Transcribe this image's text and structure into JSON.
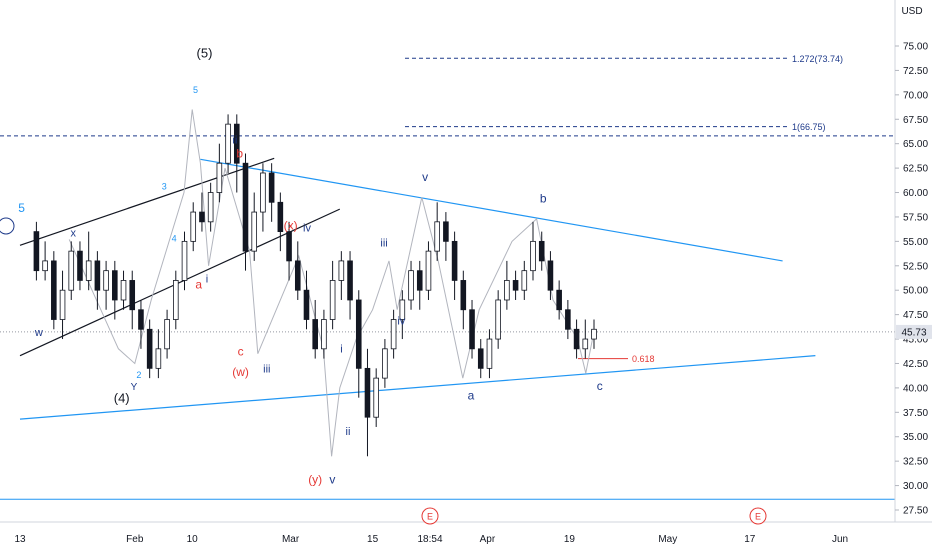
{
  "chart_data": {
    "type": "candlestick",
    "currency_label": "USD",
    "ylim": [
      26,
      76
    ],
    "y_ticks": [
      27.5,
      30.0,
      32.5,
      35.0,
      37.5,
      40.0,
      42.5,
      45.0,
      47.5,
      50.0,
      52.5,
      55.0,
      57.5,
      60.0,
      62.5,
      65.0,
      67.5,
      70.0,
      72.5,
      75.0
    ],
    "y_tick_labels": [
      "27.50",
      "30.00",
      "32.50",
      "35.00",
      "37.50",
      "40.00",
      "42.50",
      "45.00",
      "47.50",
      "50.00",
      "52.50",
      "55.00",
      "57.50",
      "60.00",
      "62.50",
      "65.00",
      "67.50",
      "70.00",
      "72.50",
      "75.00"
    ],
    "x_ticks": [
      {
        "t": 0,
        "label": "13"
      },
      {
        "t": 14,
        "label": "Feb"
      },
      {
        "t": 21,
        "label": "10"
      },
      {
        "t": 33,
        "label": "Mar"
      },
      {
        "t": 43,
        "label": "15"
      },
      {
        "t": 50,
        "label": "18:54"
      },
      {
        "t": 57,
        "label": "Apr"
      },
      {
        "t": 67,
        "label": "19"
      },
      {
        "t": 79,
        "label": "May"
      },
      {
        "t": 89,
        "label": "17"
      },
      {
        "t": 100,
        "label": "Jun"
      }
    ],
    "current_price": 45.73,
    "current_price_label": "45.73",
    "fib_levels": [
      {
        "value": 73.74,
        "label": "1.272(73.74)"
      },
      {
        "value": 66.75,
        "label": "1(66.75)"
      }
    ],
    "dashed_level": {
      "value": 65.8
    },
    "bottom_line": {
      "value": 28.6
    },
    "fib_retracement": {
      "value": 43.0,
      "label": "0.618"
    },
    "event_markers": [
      {
        "t": 50,
        "label": "E"
      },
      {
        "t": 90,
        "label": "E"
      }
    ],
    "candles": [
      [
        56,
        52,
        57,
        51
      ],
      [
        52,
        53,
        55,
        51
      ],
      [
        53,
        47,
        54,
        46
      ],
      [
        47,
        50,
        52,
        45
      ],
      [
        50,
        54,
        55,
        49
      ],
      [
        54,
        51,
        55,
        50
      ],
      [
        51,
        53,
        56,
        50
      ],
      [
        53,
        50,
        54,
        48
      ],
      [
        50,
        52,
        53,
        48
      ],
      [
        52,
        49,
        53,
        47
      ],
      [
        49,
        51,
        52,
        48
      ],
      [
        51,
        48,
        52,
        46
      ],
      [
        48,
        46,
        49,
        44
      ],
      [
        46,
        42,
        47,
        41
      ],
      [
        42,
        44,
        46,
        41
      ],
      [
        44,
        47,
        48,
        43
      ],
      [
        47,
        51,
        52,
        46
      ],
      [
        51,
        55,
        56,
        50
      ],
      [
        55,
        58,
        59,
        54
      ],
      [
        58,
        57,
        60,
        56
      ],
      [
        57,
        60,
        61,
        56
      ],
      [
        60,
        63,
        65,
        59
      ],
      [
        63,
        67,
        68,
        62
      ],
      [
        67,
        63,
        68,
        60
      ],
      [
        63,
        54,
        64,
        52
      ],
      [
        54,
        58,
        60,
        53
      ],
      [
        58,
        62,
        63,
        56
      ],
      [
        62,
        59,
        63,
        57
      ],
      [
        59,
        56,
        60,
        54
      ],
      [
        56,
        53,
        57,
        51
      ],
      [
        53,
        50,
        55,
        49
      ],
      [
        50,
        47,
        52,
        46
      ],
      [
        47,
        44,
        49,
        43
      ],
      [
        44,
        47,
        48,
        43
      ],
      [
        47,
        51,
        53,
        46
      ],
      [
        51,
        53,
        54,
        49
      ],
      [
        53,
        49,
        54,
        47
      ],
      [
        49,
        42,
        50,
        39
      ],
      [
        42,
        37,
        44,
        33
      ],
      [
        37,
        41,
        42,
        36
      ],
      [
        41,
        44,
        45,
        40
      ],
      [
        44,
        47,
        48,
        43
      ],
      [
        47,
        49,
        50,
        45
      ],
      [
        49,
        52,
        53,
        48
      ],
      [
        52,
        50,
        53,
        48
      ],
      [
        50,
        54,
        55,
        49
      ],
      [
        54,
        57,
        59,
        53
      ],
      [
        57,
        55,
        58,
        53
      ],
      [
        55,
        51,
        56,
        49
      ],
      [
        51,
        48,
        52,
        46
      ],
      [
        48,
        44,
        49,
        43
      ],
      [
        44,
        42,
        45,
        41
      ],
      [
        42,
        45,
        46,
        41
      ],
      [
        45,
        49,
        50,
        44
      ],
      [
        49,
        51,
        53,
        48
      ],
      [
        51,
        50,
        52,
        49
      ],
      [
        50,
        52,
        53,
        49
      ],
      [
        52,
        55,
        57,
        51
      ],
      [
        55,
        53,
        56,
        52
      ],
      [
        53,
        50,
        54,
        49
      ],
      [
        50,
        48,
        51,
        47
      ],
      [
        48,
        46,
        49,
        45
      ],
      [
        46,
        44,
        47,
        43
      ],
      [
        44,
        45,
        47,
        43
      ],
      [
        45,
        46,
        47,
        44
      ]
    ],
    "channel_lines": [
      {
        "color": "#131722",
        "points": [
          [
            0,
            54.6
          ],
          [
            31,
            63.5
          ]
        ]
      },
      {
        "color": "#131722",
        "points": [
          [
            0,
            43.3
          ],
          [
            39,
            58.3
          ]
        ]
      },
      {
        "color": "#2196f3",
        "points": [
          [
            22,
            63.4
          ],
          [
            93,
            53.0
          ]
        ]
      },
      {
        "color": "#2196f3",
        "points": [
          [
            0,
            36.8
          ],
          [
            97,
            43.3
          ]
        ]
      }
    ],
    "wave_path": [
      [
        6,
        55.2
      ],
      [
        12,
        44.0
      ],
      [
        14,
        42.5
      ],
      [
        16,
        49.0
      ],
      [
        20,
        60.0
      ],
      [
        21,
        68.5
      ],
      [
        22,
        63.0
      ],
      [
        23,
        52.5
      ],
      [
        25,
        62.5
      ],
      [
        28,
        54.0
      ],
      [
        29,
        43.5
      ],
      [
        34,
        53.5
      ],
      [
        37,
        44.0
      ],
      [
        38,
        33.0
      ],
      [
        39,
        40.0
      ],
      [
        41,
        45.0
      ],
      [
        43,
        48.0
      ],
      [
        45,
        53.0
      ],
      [
        46,
        48.0
      ],
      [
        49,
        59.5
      ],
      [
        51,
        53.0
      ],
      [
        54,
        41.0
      ],
      [
        56,
        48.0
      ],
      [
        60,
        55.0
      ],
      [
        63,
        57.3
      ],
      [
        65,
        49.0
      ],
      [
        68,
        45.0
      ],
      [
        69,
        41.5
      ],
      [
        70,
        45.8
      ]
    ],
    "wave_labels": [
      {
        "text": "(5)",
        "t": 22.5,
        "y": 73.8,
        "color": "#131722",
        "size": 13
      },
      {
        "text": "5",
        "t": 21.4,
        "y": 70.2,
        "color": "#2196f3",
        "size": 9
      },
      {
        "text": "ii",
        "t": 26.2,
        "y": 65.0,
        "color": "#1e3a8a",
        "size": 11
      },
      {
        "text": "b",
        "t": 26.8,
        "y": 63.6,
        "color": "#e53935",
        "size": 12
      },
      {
        "text": "3",
        "t": 17.6,
        "y": 60.3,
        "color": "#2196f3",
        "size": 9
      },
      {
        "text": "4",
        "t": 18.8,
        "y": 55.0,
        "color": "#2196f3",
        "size": 9
      },
      {
        "text": "x",
        "t": 6.5,
        "y": 55.5,
        "color": "#1e3a8a",
        "size": 11
      },
      {
        "text": "5",
        "t": 0.2,
        "y": 58.0,
        "color": "#2196f3",
        "size": 12
      },
      {
        "text": "(x)",
        "t": 33.0,
        "y": 56.2,
        "color": "#e53935",
        "size": 12
      },
      {
        "text": "iv",
        "t": 35.0,
        "y": 56.0,
        "color": "#1e3a8a",
        "size": 11
      },
      {
        "text": "a",
        "t": 21.8,
        "y": 50.2,
        "color": "#e53935",
        "size": 12
      },
      {
        "text": "i",
        "t": 22.8,
        "y": 50.8,
        "color": "#1e3a8a",
        "size": 11
      },
      {
        "text": "w",
        "t": 2.3,
        "y": 45.3,
        "color": "#1e3a8a",
        "size": 11
      },
      {
        "text": "2",
        "t": 14.5,
        "y": 41.0,
        "color": "#2196f3",
        "size": 9
      },
      {
        "text": "Y",
        "t": 13.9,
        "y": 39.8,
        "color": "#1e3a8a",
        "size": 10
      },
      {
        "text": "(4)",
        "t": 12.4,
        "y": 38.5,
        "color": "#131722",
        "size": 13
      },
      {
        "text": "c",
        "t": 26.9,
        "y": 43.3,
        "color": "#e53935",
        "size": 12
      },
      {
        "text": "(w)",
        "t": 26.9,
        "y": 41.2,
        "color": "#e53935",
        "size": 12
      },
      {
        "text": "iii",
        "t": 30.1,
        "y": 41.6,
        "color": "#1e3a8a",
        "size": 11
      },
      {
        "text": "iii",
        "t": 44.4,
        "y": 54.5,
        "color": "#1e3a8a",
        "size": 11
      },
      {
        "text": "v",
        "t": 49.4,
        "y": 61.2,
        "color": "#1e3a8a",
        "size": 12
      },
      {
        "text": "iv",
        "t": 46.5,
        "y": 46.5,
        "color": "#1e3a8a",
        "size": 11
      },
      {
        "text": "i",
        "t": 39.2,
        "y": 43.6,
        "color": "#1e3a8a",
        "size": 11
      },
      {
        "text": "ii",
        "t": 40.0,
        "y": 35.2,
        "color": "#1e3a8a",
        "size": 11
      },
      {
        "text": "(y)",
        "t": 36.0,
        "y": 30.2,
        "color": "#e53935",
        "size": 12
      },
      {
        "text": "v",
        "t": 38.1,
        "y": 30.2,
        "color": "#1e3a8a",
        "size": 12
      },
      {
        "text": "a",
        "t": 55.0,
        "y": 38.8,
        "color": "#1e3a8a",
        "size": 12
      },
      {
        "text": "b",
        "t": 63.8,
        "y": 59.0,
        "color": "#1e3a8a",
        "size": 12
      },
      {
        "text": "c",
        "t": 70.7,
        "y": 39.8,
        "color": "#1e3a8a",
        "size": 12
      }
    ]
  }
}
